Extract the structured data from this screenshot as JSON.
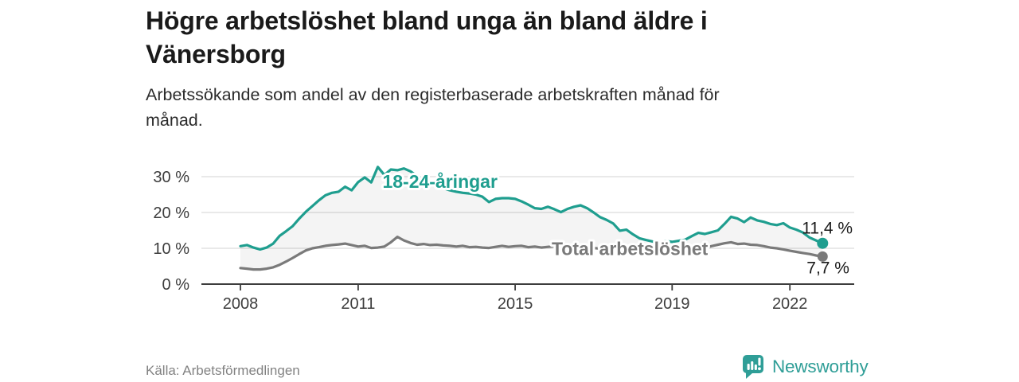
{
  "header": {
    "title_lines": [
      "Högre arbetslöshet bland unga än bland äldre i",
      "Vänersborg"
    ],
    "subtitle_lines": [
      "Arbetssökande som andel av den registerbaserade arbetskraften månad för",
      "månad."
    ]
  },
  "footer": {
    "source": "Källa: Arbetsförmedlingen",
    "logo_text": "Newsworthy",
    "brand_color": "#2f9e97"
  },
  "chart_data": {
    "type": "line",
    "title": "Högre arbetslöshet bland unga än bland äldre i Vänersborg",
    "subtitle": "Arbetssökande som andel av den registerbaserade arbetskraften månad för månad.",
    "grid": "horizontal",
    "legend_position": "inline-labels",
    "x_start": 2008.0,
    "x_step_years": 0.166667,
    "x_ticks": [
      2008,
      2011,
      2015,
      2019,
      2022
    ],
    "y_tick_values": [
      0,
      10,
      20,
      30
    ],
    "y_tick_labels": [
      "0 %",
      "10 %",
      "20 %",
      "30 %"
    ],
    "ylim": [
      0,
      34
    ],
    "area_between_series": true,
    "series": [
      {
        "id": "youth",
        "name": "18-24-åringar",
        "color": "#1f9e8f",
        "label_at": {
          "year": 2011.62,
          "value": 26.9
        },
        "end_label": "11,4 %",
        "end_value": 11.4,
        "values": [
          10.6,
          10.9,
          10.2,
          9.7,
          10.2,
          11.3,
          13.5,
          14.8,
          16.2,
          18.3,
          20.2,
          21.8,
          23.4,
          24.8,
          25.5,
          25.8,
          27.2,
          26.2,
          28.5,
          29.8,
          28.4,
          32.7,
          30.5,
          32.0,
          31.8,
          32.3,
          31.5,
          30.2,
          29.0,
          28.0,
          27.4,
          26.8,
          26.2,
          25.8,
          25.5,
          25.3,
          25.0,
          24.4,
          22.9,
          23.8,
          24.0,
          24.0,
          23.8,
          23.1,
          22.2,
          21.2,
          21.0,
          21.6,
          20.9,
          20.1,
          21.0,
          21.6,
          22.0,
          21.2,
          20.0,
          18.7,
          17.9,
          16.9,
          14.9,
          15.2,
          13.9,
          12.8,
          12.3,
          11.9,
          11.6,
          12.0,
          11.8,
          12.1,
          12.4,
          13.4,
          14.3,
          14.0,
          14.5,
          15.0,
          16.8,
          18.8,
          18.3,
          17.3,
          18.6,
          17.8,
          17.4,
          16.8,
          16.5,
          17.0,
          15.8,
          15.2,
          14.4,
          13.0,
          12.2,
          11.4
        ]
      },
      {
        "id": "total",
        "name": "Total arbetslöshet",
        "color": "#7a7a7a",
        "label_at": {
          "year": 2015.93,
          "value": 8.1
        },
        "end_label": "7,7 %",
        "end_value": 7.7,
        "values": [
          4.5,
          4.3,
          4.1,
          4.1,
          4.3,
          4.7,
          5.4,
          6.3,
          7.3,
          8.4,
          9.4,
          10.0,
          10.3,
          10.7,
          10.9,
          11.1,
          11.3,
          10.9,
          10.5,
          10.7,
          10.1,
          10.2,
          10.5,
          11.7,
          13.2,
          12.2,
          11.5,
          11.0,
          11.2,
          10.9,
          11.0,
          10.8,
          10.7,
          10.5,
          10.7,
          10.3,
          10.4,
          10.2,
          10.1,
          10.4,
          10.7,
          10.4,
          10.6,
          10.7,
          10.3,
          10.5,
          10.2,
          10.4,
          10.6,
          10.7,
          10.4,
          10.5,
          10.3,
          10.2,
          10.1,
          9.9,
          9.8,
          9.7,
          9.6,
          9.5,
          9.5,
          9.4,
          9.3,
          9.3,
          9.4,
          9.5,
          9.5,
          9.6,
          9.7,
          9.8,
          9.9,
          10.1,
          10.6,
          11.0,
          11.4,
          11.7,
          11.2,
          11.3,
          11.0,
          10.9,
          10.6,
          10.2,
          10.0,
          9.7,
          9.3,
          9.0,
          8.7,
          8.4,
          8.0,
          7.7
        ]
      }
    ]
  }
}
